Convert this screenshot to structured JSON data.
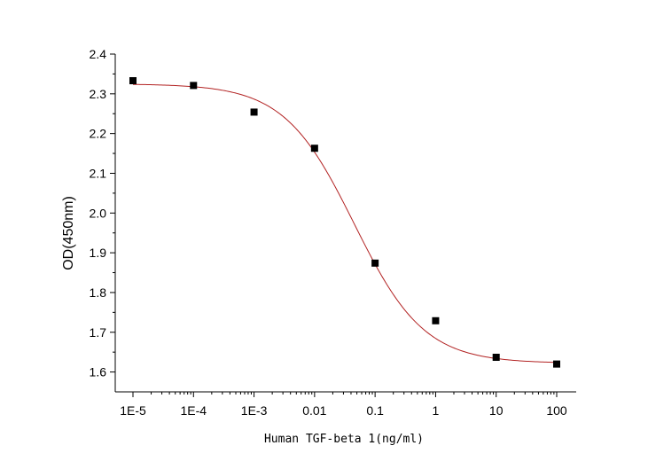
{
  "chart_data": {
    "type": "scatter",
    "title": "",
    "xlabel": "Human TGF-beta 1(ng/ml)",
    "ylabel": "OD(450nm)",
    "xscale": "log",
    "xlim": [
      1e-05,
      100
    ],
    "ylim": [
      1.55,
      2.4
    ],
    "x_ticks": [
      1e-05,
      0.0001,
      0.001,
      0.01,
      0.1,
      1,
      10,
      100
    ],
    "x_tick_labels": [
      "1E-5",
      "1E-4",
      "1E-3",
      "0.01",
      "0.1",
      "1",
      "10",
      "100"
    ],
    "y_ticks": [
      1.6,
      1.7,
      1.8,
      1.9,
      2.0,
      2.1,
      2.2,
      2.3,
      2.4
    ],
    "y_tick_labels": [
      "1.6",
      "1.7",
      "1.8",
      "1.9",
      "2.0",
      "2.1",
      "2.2",
      "2.3",
      "2.4"
    ],
    "grid": false,
    "legend": "none",
    "series": [
      {
        "kind": "points",
        "marker": "square",
        "color": "#000000",
        "x": [
          1e-05,
          0.0001,
          0.001,
          0.01,
          0.1,
          1,
          10,
          100
        ],
        "y": [
          2.333,
          2.321,
          2.254,
          2.163,
          1.874,
          1.729,
          1.637,
          1.62
        ]
      },
      {
        "kind": "fit-curve",
        "color": "#b22222",
        "model": "4PL",
        "top": 2.325,
        "bottom": 1.622,
        "ec50": 0.045,
        "hill": 0.75
      }
    ]
  }
}
